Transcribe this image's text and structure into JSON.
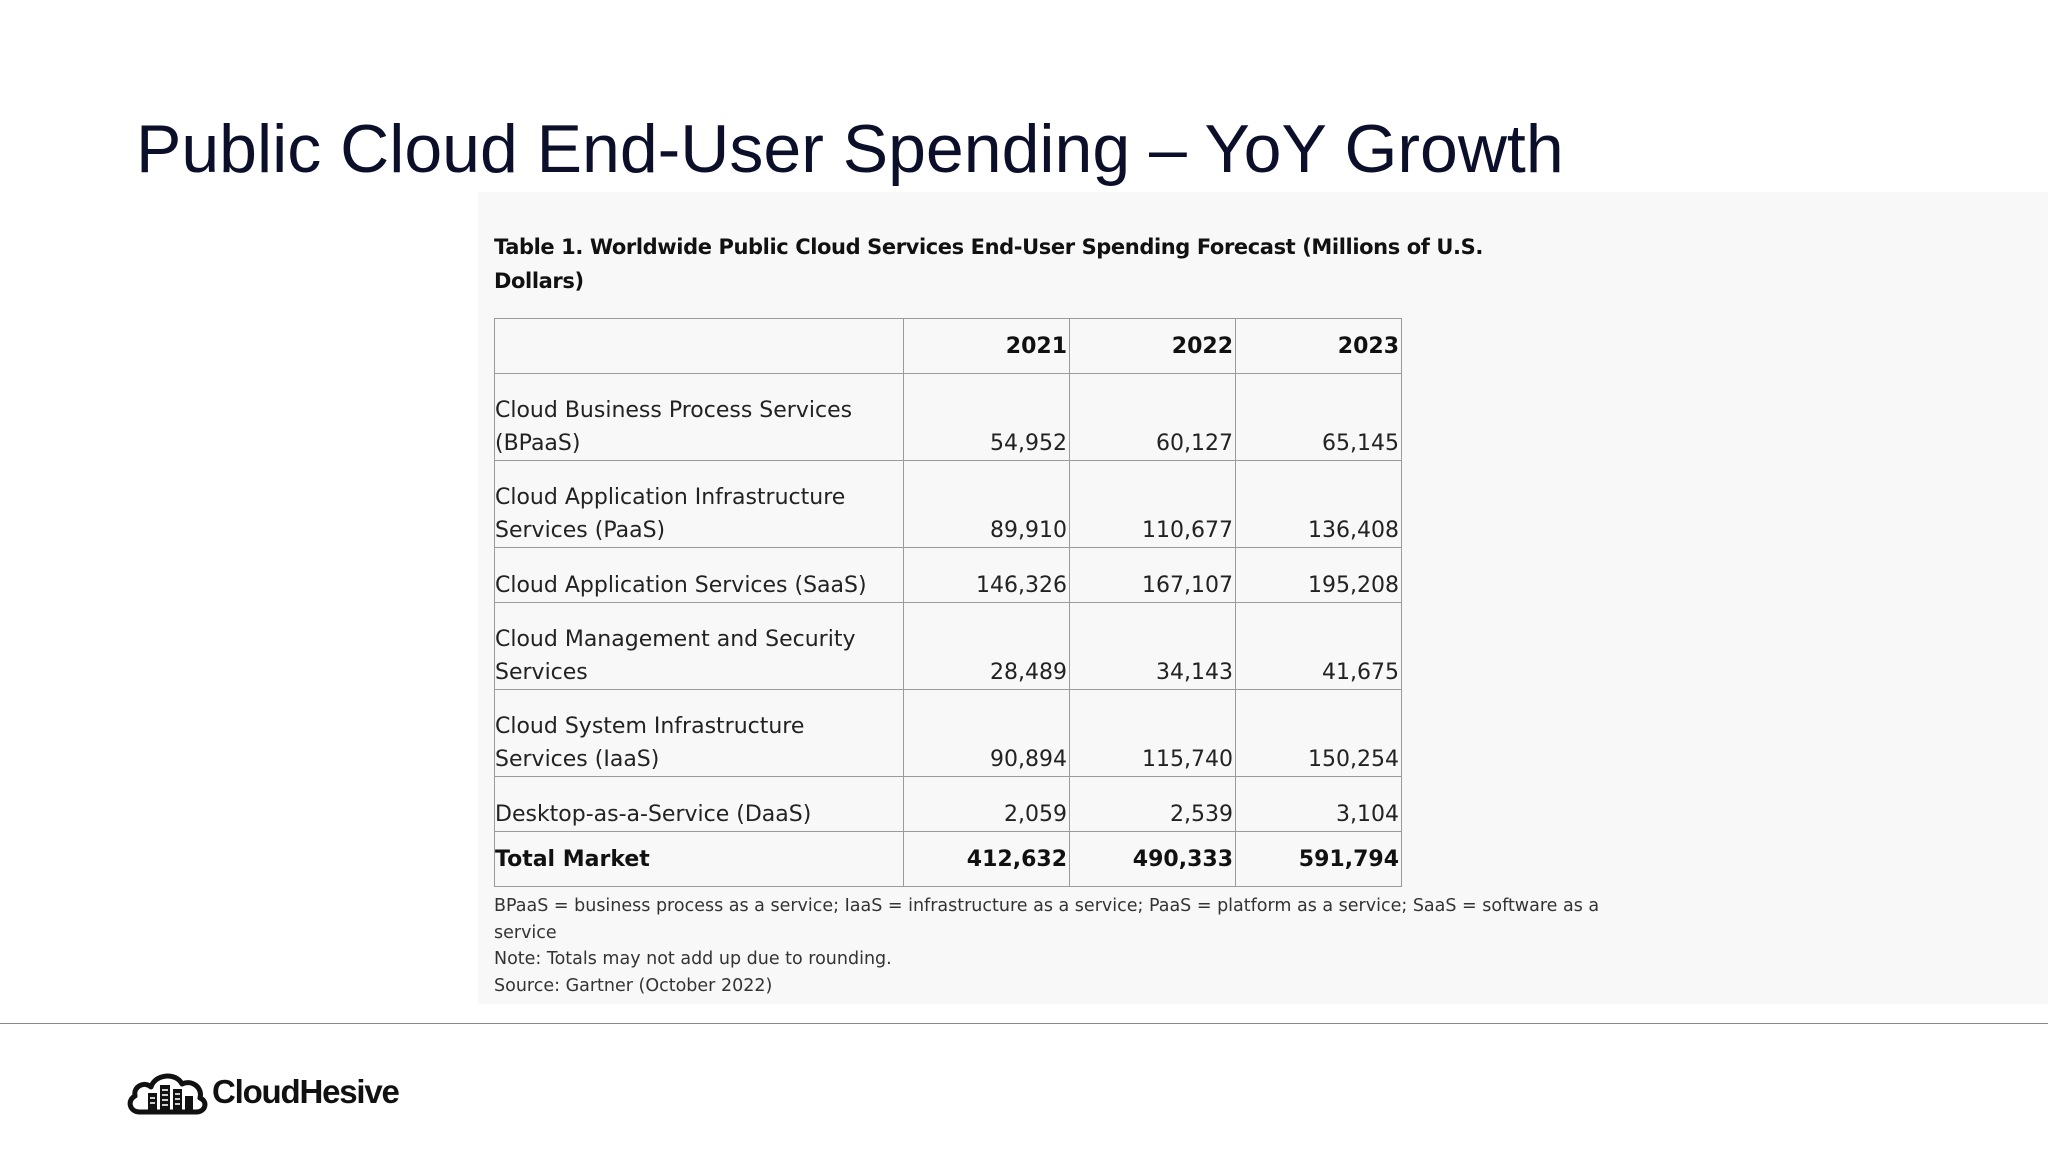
{
  "slide": {
    "title": "Public Cloud End-User Spending – YoY Growth"
  },
  "table": {
    "caption": "Table 1. Worldwide Public Cloud Services End-User Spending Forecast (Millions of U.S. Dollars)",
    "columns": [
      "",
      "2021",
      "2022",
      "2023"
    ],
    "rows": [
      {
        "label": "Cloud Business Process Services (BPaaS)",
        "values": [
          "54,952",
          "60,127",
          "65,145"
        ]
      },
      {
        "label": "Cloud Application Infrastructure Services (PaaS)",
        "values": [
          "89,910",
          "110,677",
          "136,408"
        ]
      },
      {
        "label": "Cloud Application Services (SaaS)",
        "values": [
          "146,326",
          "167,107",
          "195,208"
        ]
      },
      {
        "label": "Cloud Management and Security Services",
        "values": [
          "28,489",
          "34,143",
          "41,675"
        ]
      },
      {
        "label": "Cloud System Infrastructure Services (IaaS)",
        "values": [
          "90,894",
          "115,740",
          "150,254"
        ]
      },
      {
        "label": "Desktop-as-a-Service (DaaS)",
        "values": [
          "2,059",
          "2,539",
          "3,104"
        ]
      },
      {
        "label": "Total Market",
        "values": [
          "412,632",
          "490,333",
          "591,794"
        ]
      }
    ],
    "notes": [
      "BPaaS = business process as a service; IaaS = infrastructure as a service; PaaS = platform as a service; SaaS = software as a service",
      "Note: Totals may not add up due to rounding.",
      "Source: Gartner (October 2022)"
    ]
  },
  "footer": {
    "logo_text": "CloudHesive",
    "logo_icon": "cloud-buildings-icon"
  }
}
